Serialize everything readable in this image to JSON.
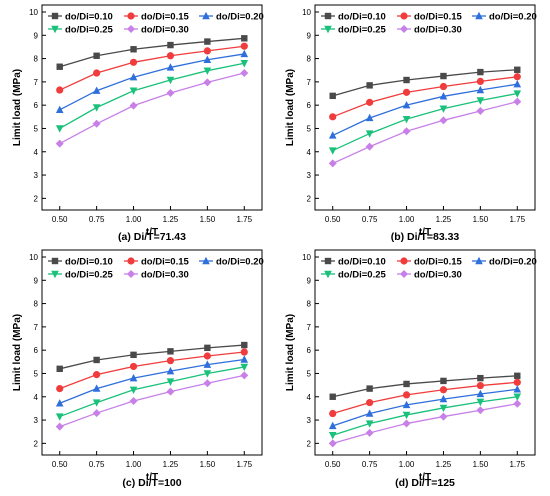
{
  "colors": {
    "d0.10": "#4a4a4a",
    "d0.15": "#f03c3c",
    "d0.20": "#2f6fdc",
    "d0.25": "#19c17a",
    "d0.30": "#c880e8"
  },
  "chart_data": [
    {
      "type": "line",
      "caption": "(a) Di/T=71.43",
      "xlabel": "t/T",
      "ylabel": "Limit load (MPa)",
      "x": [
        0.5,
        0.75,
        1.0,
        1.25,
        1.5,
        1.75
      ],
      "x_ticks": [
        "0.50",
        "0.75",
        "1.00",
        "1.25",
        "1.50",
        "1.75"
      ],
      "ylim": [
        1.5,
        10.3
      ],
      "y_ticks": [
        "2",
        "3",
        "4",
        "5",
        "6",
        "7",
        "8",
        "9",
        "10"
      ],
      "legend_position": "top-left",
      "series": [
        {
          "name": "do/Di=0.10",
          "color_key": "d0.10",
          "marker": "square",
          "values": [
            7.65,
            8.12,
            8.4,
            8.58,
            8.73,
            8.87
          ]
        },
        {
          "name": "do/Di=0.15",
          "color_key": "d0.15",
          "marker": "circle",
          "values": [
            6.65,
            7.38,
            7.84,
            8.12,
            8.33,
            8.53
          ]
        },
        {
          "name": "do/Di=0.20",
          "color_key": "d0.20",
          "marker": "triangle-up",
          "values": [
            5.8,
            6.62,
            7.2,
            7.62,
            7.95,
            8.2
          ]
        },
        {
          "name": "do/Di=0.25",
          "color_key": "d0.25",
          "marker": "triangle-down",
          "values": [
            5.0,
            5.9,
            6.62,
            7.08,
            7.48,
            7.8
          ]
        },
        {
          "name": "do/Di=0.30",
          "color_key": "d0.30",
          "marker": "diamond",
          "values": [
            4.35,
            5.2,
            5.98,
            6.52,
            6.98,
            7.38
          ]
        }
      ]
    },
    {
      "type": "line",
      "caption": "(b) Di/T=83.33",
      "xlabel": "t/T",
      "ylabel": "Limit load (MPa)",
      "x": [
        0.5,
        0.75,
        1.0,
        1.25,
        1.5,
        1.75
      ],
      "x_ticks": [
        "0.50",
        "0.75",
        "1.00",
        "1.25",
        "1.50",
        "1.75"
      ],
      "ylim": [
        1.5,
        10.3
      ],
      "y_ticks": [
        "2",
        "3",
        "4",
        "5",
        "6",
        "7",
        "8",
        "9",
        "10"
      ],
      "legend_position": "top-left",
      "series": [
        {
          "name": "do/Di=0.10",
          "color_key": "d0.10",
          "marker": "square",
          "values": [
            6.4,
            6.85,
            7.08,
            7.25,
            7.42,
            7.52
          ]
        },
        {
          "name": "do/Di=0.15",
          "color_key": "d0.15",
          "marker": "circle",
          "values": [
            5.5,
            6.12,
            6.55,
            6.8,
            7.02,
            7.22
          ]
        },
        {
          "name": "do/Di=0.20",
          "color_key": "d0.20",
          "marker": "triangle-up",
          "values": [
            4.7,
            5.45,
            6.0,
            6.38,
            6.65,
            6.9
          ]
        },
        {
          "name": "do/Di=0.25",
          "color_key": "d0.25",
          "marker": "triangle-down",
          "values": [
            4.05,
            4.78,
            5.4,
            5.85,
            6.2,
            6.5
          ]
        },
        {
          "name": "do/Di=0.30",
          "color_key": "d0.30",
          "marker": "diamond",
          "values": [
            3.5,
            4.22,
            4.88,
            5.35,
            5.75,
            6.15
          ]
        }
      ]
    },
    {
      "type": "line",
      "caption": "(c) Di/T=100",
      "xlabel": "t/T",
      "ylabel": "Limit load (MPa)",
      "x": [
        0.5,
        0.75,
        1.0,
        1.25,
        1.5,
        1.75
      ],
      "x_ticks": [
        "0.50",
        "0.75",
        "1.00",
        "1.25",
        "1.50",
        "1.75"
      ],
      "ylim": [
        1.5,
        10.3
      ],
      "y_ticks": [
        "2",
        "3",
        "4",
        "5",
        "6",
        "7",
        "8",
        "9",
        "10"
      ],
      "legend_position": "top-left",
      "series": [
        {
          "name": "do/Di=0.10",
          "color_key": "d0.10",
          "marker": "square",
          "values": [
            5.2,
            5.58,
            5.8,
            5.95,
            6.1,
            6.22
          ]
        },
        {
          "name": "do/Di=0.15",
          "color_key": "d0.15",
          "marker": "circle",
          "values": [
            4.35,
            4.95,
            5.3,
            5.55,
            5.75,
            5.92
          ]
        },
        {
          "name": "do/Di=0.20",
          "color_key": "d0.20",
          "marker": "triangle-up",
          "values": [
            3.72,
            4.35,
            4.8,
            5.1,
            5.38,
            5.6
          ]
        },
        {
          "name": "do/Di=0.25",
          "color_key": "d0.25",
          "marker": "triangle-down",
          "values": [
            3.15,
            3.75,
            4.3,
            4.65,
            5.0,
            5.28
          ]
        },
        {
          "name": "do/Di=0.30",
          "color_key": "d0.30",
          "marker": "diamond",
          "values": [
            2.72,
            3.3,
            3.82,
            4.22,
            4.58,
            4.92
          ]
        }
      ]
    },
    {
      "type": "line",
      "caption": "(d) Di/T=125",
      "xlabel": "t/T",
      "ylabel": "Limit load (MPa)",
      "x": [
        0.5,
        0.75,
        1.0,
        1.25,
        1.5,
        1.75
      ],
      "x_ticks": [
        "0.50",
        "0.75",
        "1.00",
        "1.25",
        "1.50",
        "1.75"
      ],
      "ylim": [
        1.5,
        10.3
      ],
      "y_ticks": [
        "2",
        "3",
        "4",
        "5",
        "6",
        "7",
        "8",
        "9",
        "10"
      ],
      "legend_position": "top-left",
      "series": [
        {
          "name": "do/Di=0.10",
          "color_key": "d0.10",
          "marker": "square",
          "values": [
            4.0,
            4.35,
            4.55,
            4.68,
            4.8,
            4.9
          ]
        },
        {
          "name": "do/Di=0.15",
          "color_key": "d0.15",
          "marker": "circle",
          "values": [
            3.28,
            3.75,
            4.08,
            4.3,
            4.48,
            4.62
          ]
        },
        {
          "name": "do/Di=0.20",
          "color_key": "d0.20",
          "marker": "triangle-up",
          "values": [
            2.75,
            3.28,
            3.65,
            3.9,
            4.12,
            4.32
          ]
        },
        {
          "name": "do/Di=0.25",
          "color_key": "d0.25",
          "marker": "triangle-down",
          "values": [
            2.35,
            2.85,
            3.22,
            3.52,
            3.78,
            4.0
          ]
        },
        {
          "name": "do/Di=0.30",
          "color_key": "d0.30",
          "marker": "diamond",
          "values": [
            2.0,
            2.45,
            2.85,
            3.15,
            3.42,
            3.7
          ]
        }
      ]
    }
  ]
}
